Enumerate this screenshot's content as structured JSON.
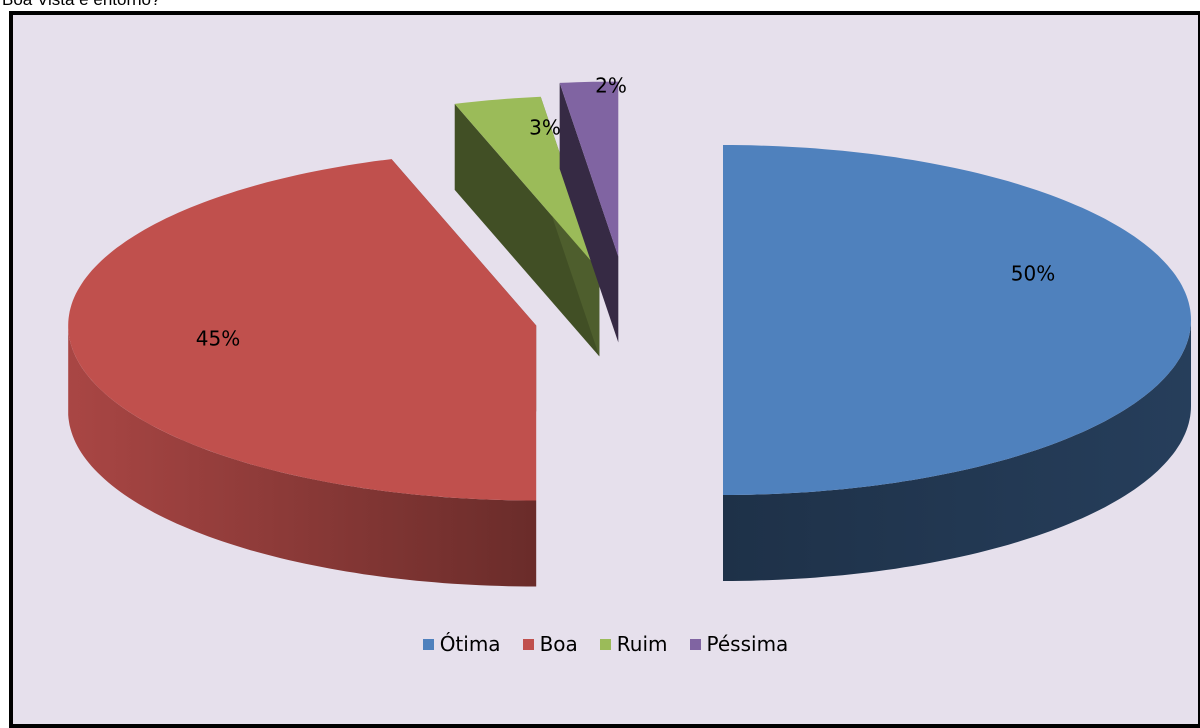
{
  "caption": "Boa Vista e entorno?",
  "chart_data": {
    "type": "pie",
    "title": "",
    "labels": [
      "Ótima",
      "Boa",
      "Ruim",
      "Péssima"
    ],
    "values": [
      50,
      45,
      3,
      2
    ],
    "data_labels": [
      "50%",
      "45%",
      "3%",
      "2%"
    ],
    "colors": [
      "#4f81bd",
      "#c0504d",
      "#9bbb59",
      "#8064a2"
    ],
    "exploded": true,
    "three_d": true,
    "legend_position": "bottom"
  }
}
